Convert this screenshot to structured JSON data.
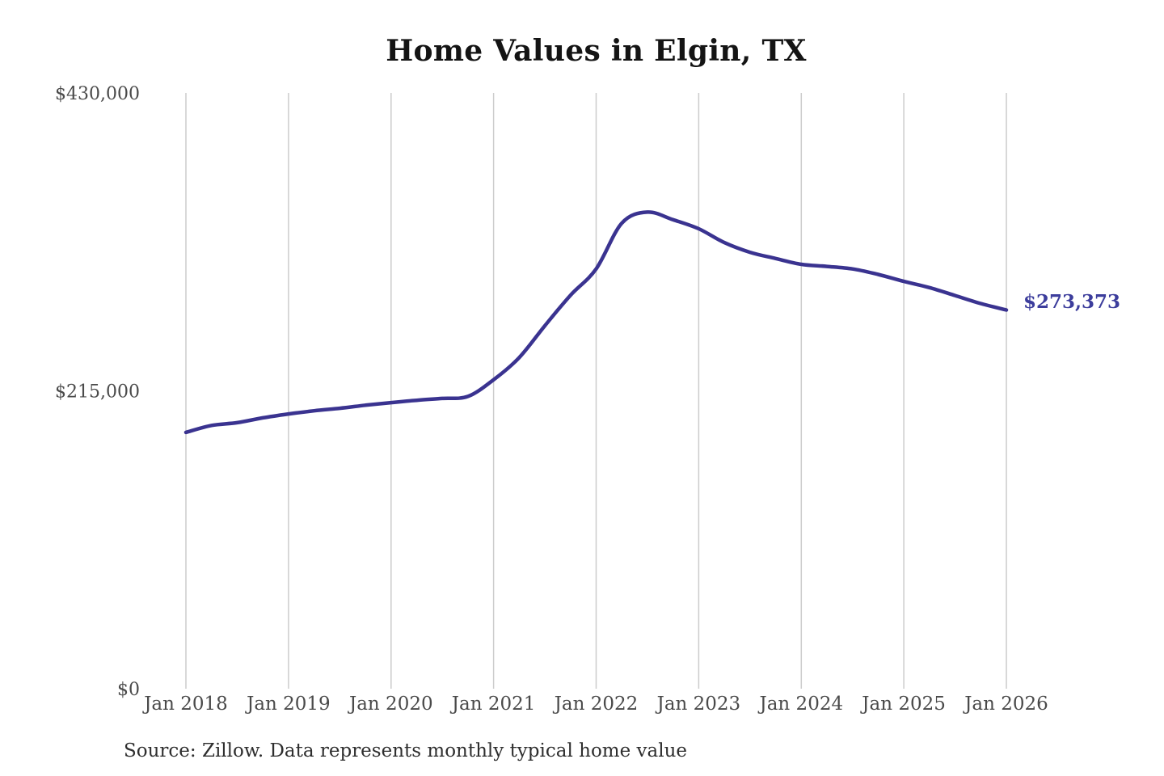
{
  "chart": {
    "title": "Home Values in Elgin, TX",
    "end_label": "$273,373",
    "source_note": "Source: Zillow. Data represents monthly typical home value",
    "colors": {
      "line": "#3a3390",
      "end_label_text": "#3c3d9c",
      "grid": "#cccccc",
      "axis_text": "#4a4a4a",
      "title_text": "#141414",
      "source_text": "#2e2e2e",
      "background": "#ffffff"
    }
  },
  "chart_data": {
    "type": "line",
    "title": "Home Values in Elgin, TX",
    "ylabel": "",
    "xlabel": "",
    "ylim": [
      0,
      430000
    ],
    "grid": "vertical-only",
    "legend_position": "none",
    "y_tick_values": [
      0,
      215000,
      430000
    ],
    "y_tick_labels": [
      "$0",
      "$215,000",
      "$430,000"
    ],
    "x_tick_months": [
      0,
      12,
      24,
      36,
      48,
      60,
      72,
      84,
      96
    ],
    "x_tick_labels": [
      "Jan 2018",
      "Jan 2019",
      "Jan 2020",
      "Jan 2021",
      "Jan 2022",
      "Jan 2023",
      "Jan 2024",
      "Jan 2025",
      "Jan 2026"
    ],
    "series": [
      {
        "name": "Monthly typical home value",
        "x": [
          "2018-01",
          "2018-04",
          "2018-07",
          "2018-10",
          "2019-01",
          "2019-04",
          "2019-07",
          "2019-10",
          "2020-01",
          "2020-04",
          "2020-07",
          "2020-10",
          "2021-01",
          "2021-04",
          "2021-07",
          "2021-10",
          "2022-01",
          "2022-04",
          "2022-07",
          "2022-10",
          "2023-01",
          "2023-04",
          "2023-07",
          "2023-10",
          "2024-01",
          "2024-04",
          "2024-07",
          "2024-10",
          "2025-01",
          "2025-04",
          "2025-07",
          "2025-10",
          "2026-01"
        ],
        "values": [
          185000,
          190000,
          192000,
          195500,
          198300,
          200600,
          202400,
          204600,
          206500,
          208200,
          209500,
          211000,
          223000,
          239000,
          262000,
          284000,
          303000,
          336000,
          344000,
          338500,
          332000,
          322000,
          315000,
          310500,
          306300,
          304800,
          303000,
          299000,
          294000,
          289500,
          283800,
          278000,
          273373
        ]
      }
    ],
    "end_value": 273373,
    "end_value_label": "$273,373"
  }
}
